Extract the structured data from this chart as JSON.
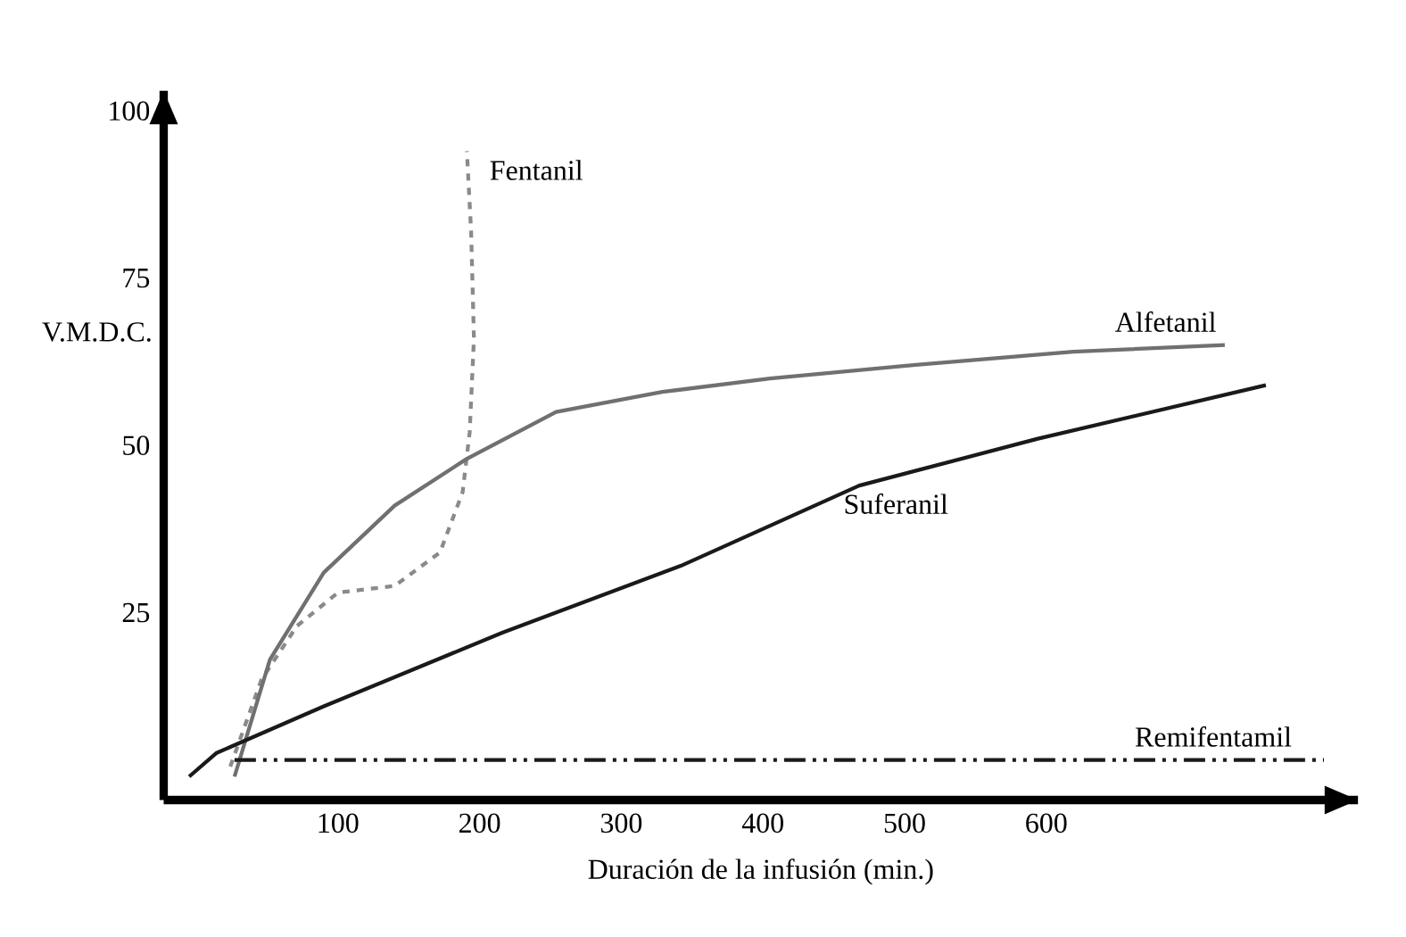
{
  "chart_data": {
    "type": "line",
    "xlabel": "Duración de la infusión (min.)",
    "ylabel": "V.M.D.C.",
    "xlim": [
      -23,
      820
    ],
    "ylim": [
      -3,
      103
    ],
    "xticks": [
      100,
      200,
      300,
      400,
      500,
      600
    ],
    "yticks": [
      25,
      50,
      75,
      100
    ],
    "grid": false,
    "legend": false,
    "marker": "none",
    "series": [
      {
        "name": "Fentanil",
        "color": "#8a8a8a",
        "line_style": "dashed",
        "x": [
          24,
          46,
          71,
          100,
          140,
          172,
          188,
          193,
          196,
          194,
          191
        ],
        "values": [
          2,
          15,
          23,
          28,
          29,
          34,
          43,
          52,
          66,
          82,
          94
        ]
      },
      {
        "name": "Alfetanil",
        "color": "#707070",
        "line_style": "solid",
        "x": [
          27,
          52,
          90,
          140,
          191,
          254,
          329,
          405,
          506,
          619,
          726
        ],
        "values": [
          0.5,
          18,
          31,
          41,
          48,
          55,
          58,
          60,
          62,
          64,
          65
        ]
      },
      {
        "name": "Suferanil",
        "color": "#1a1a1a",
        "line_style": "solid",
        "x": [
          -5,
          14,
          90,
          216,
          342,
          468,
          594,
          755
        ],
        "values": [
          0.5,
          4,
          11,
          22,
          32,
          44,
          51,
          59
        ]
      },
      {
        "name": "Remifentamil",
        "color": "#1a1a1a",
        "line_style": "dashdot",
        "x": [
          27,
          796
        ],
        "values": [
          3,
          3
        ]
      }
    ]
  }
}
